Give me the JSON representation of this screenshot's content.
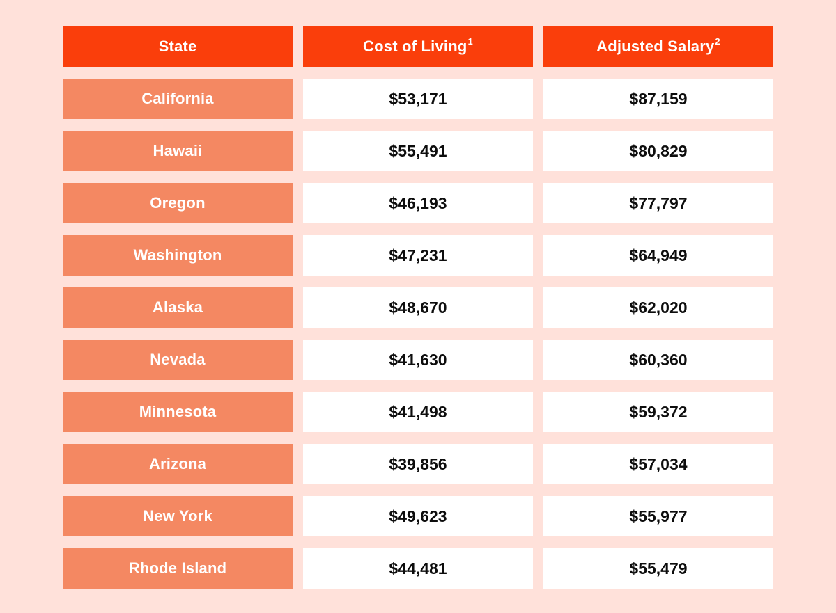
{
  "colors": {
    "background": "#ffe1da",
    "header": "#fa3e0b",
    "state_cell": "#f48862",
    "value_cell": "#ffffff",
    "header_text": "#ffffff",
    "state_text": "#ffffff",
    "value_text": "#0d0d0d"
  },
  "table": {
    "columns": [
      {
        "label": "State",
        "sup": ""
      },
      {
        "label": "Cost of Living",
        "sup": "1"
      },
      {
        "label": "Adjusted Salary",
        "sup": "2"
      }
    ],
    "rows": [
      {
        "state": "California",
        "cost_of_living": "$53,171",
        "adjusted_salary": "$87,159"
      },
      {
        "state": "Hawaii",
        "cost_of_living": "$55,491",
        "adjusted_salary": "$80,829"
      },
      {
        "state": "Oregon",
        "cost_of_living": "$46,193",
        "adjusted_salary": "$77,797"
      },
      {
        "state": "Washington",
        "cost_of_living": "$47,231",
        "adjusted_salary": "$64,949"
      },
      {
        "state": "Alaska",
        "cost_of_living": "$48,670",
        "adjusted_salary": "$62,020"
      },
      {
        "state": "Nevada",
        "cost_of_living": "$41,630",
        "adjusted_salary": "$60,360"
      },
      {
        "state": "Minnesota",
        "cost_of_living": "$41,498",
        "adjusted_salary": "$59,372"
      },
      {
        "state": "Arizona",
        "cost_of_living": "$39,856",
        "adjusted_salary": "$57,034"
      },
      {
        "state": "New York",
        "cost_of_living": "$49,623",
        "adjusted_salary": "$55,977"
      },
      {
        "state": "Rhode Island",
        "cost_of_living": "$44,481",
        "adjusted_salary": "$55,479"
      }
    ]
  },
  "chart_data": {
    "type": "table",
    "title": "",
    "columns": [
      "State",
      "Cost of Living",
      "Adjusted Salary"
    ],
    "column_superscripts": [
      "",
      "1",
      "2"
    ],
    "rows": [
      [
        "California",
        53171,
        87159
      ],
      [
        "Hawaii",
        55491,
        80829
      ],
      [
        "Oregon",
        46193,
        77797
      ],
      [
        "Washington",
        47231,
        64949
      ],
      [
        "Alaska",
        48670,
        62020
      ],
      [
        "Nevada",
        41630,
        60360
      ],
      [
        "Minnesota",
        41498,
        59372
      ],
      [
        "Arizona",
        39856,
        57034
      ],
      [
        "New York",
        49623,
        55977
      ],
      [
        "Rhode Island",
        44481,
        55479
      ]
    ]
  }
}
